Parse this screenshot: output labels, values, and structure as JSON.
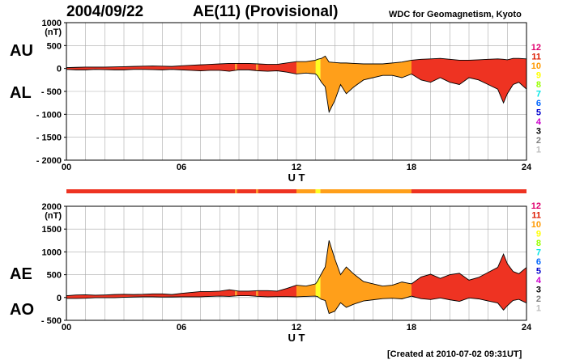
{
  "header": {
    "date": "2004/09/22",
    "title": "AE(11) (Provisional)",
    "source": "WDC for Geomagnetism, Kyoto"
  },
  "footer": {
    "created": "[Created at 2010-07-02 09:31UT]"
  },
  "colors": {
    "legend": [
      "#e0006f",
      "#dd1a00",
      "#ff9900",
      "#ffff00",
      "#99ff00",
      "#00e5e5",
      "#0066ff",
      "#0000cc",
      "#cc00cc",
      "#000000",
      "#808080",
      "#bbbbbb"
    ],
    "fill_levels": {
      "12": "#ee3322",
      "11": "#ee3322",
      "10": "#ff9f1a",
      "9": "#ffff22"
    }
  },
  "chart_data": [
    {
      "type": "area",
      "name": "AU/AL",
      "labels": {
        "top": "AU",
        "bottom": "AL"
      },
      "y_unit": "(nT)",
      "ylim": [
        -2000,
        1000
      ],
      "y_ticks": [
        "1000",
        "500",
        "0",
        "- 500",
        "- 1000",
        "- 1500",
        "- 2000"
      ],
      "y_tick_values": [
        1000,
        500,
        0,
        -500,
        -1000,
        -1500,
        -2000
      ],
      "xlabel": "U T",
      "xlim": [
        0,
        24
      ],
      "x_ticks": [
        "00",
        "06",
        "12",
        "18",
        "24"
      ],
      "x_tick_values": [
        0,
        6,
        12,
        18,
        24
      ],
      "grid": true,
      "legend": [
        "12",
        "11",
        "10",
        "9",
        "8",
        "7",
        "6",
        "5",
        "4",
        "3",
        "2",
        "1"
      ],
      "x": [
        0,
        0.5,
        1,
        1.5,
        2,
        2.5,
        3,
        3.5,
        4,
        4.5,
        5,
        5.5,
        6,
        6.5,
        7,
        7.5,
        8,
        8.5,
        9,
        9.5,
        10,
        10.5,
        11,
        11.5,
        12,
        12.5,
        13,
        13.1,
        13.3,
        13.5,
        13.7,
        14,
        14.3,
        14.6,
        15,
        15.5,
        16,
        16.5,
        17,
        17.5,
        18,
        18.5,
        19,
        19.5,
        20,
        20.5,
        21,
        21.5,
        22,
        22.5,
        22.8,
        23,
        23.3,
        23.6,
        24
      ],
      "upper": [
        20,
        25,
        30,
        30,
        30,
        35,
        40,
        45,
        50,
        55,
        50,
        45,
        60,
        70,
        80,
        90,
        100,
        110,
        110,
        110,
        100,
        90,
        90,
        120,
        150,
        150,
        180,
        200,
        220,
        270,
        140,
        130,
        120,
        120,
        110,
        100,
        100,
        100,
        120,
        140,
        180,
        200,
        210,
        220,
        200,
        180,
        180,
        190,
        200,
        210,
        200,
        190,
        220,
        220,
        210
      ],
      "lower": [
        -20,
        -30,
        -30,
        -20,
        -25,
        -30,
        -30,
        -20,
        -20,
        -25,
        -30,
        -20,
        -30,
        -40,
        -50,
        -40,
        -40,
        -60,
        -30,
        -30,
        -50,
        -60,
        -50,
        -80,
        -120,
        -100,
        -120,
        -160,
        -300,
        -400,
        -950,
        -700,
        -350,
        -550,
        -400,
        -250,
        -200,
        -150,
        -150,
        -200,
        -120,
        -250,
        -300,
        -200,
        -300,
        -350,
        -200,
        -250,
        -350,
        -450,
        -750,
        -550,
        -350,
        -300,
        -450
      ],
      "activity_bands": [
        {
          "from": 0,
          "to": 8.8,
          "level": 11
        },
        {
          "from": 8.8,
          "to": 8.9,
          "level": 10
        },
        {
          "from": 8.9,
          "to": 9.9,
          "level": 11
        },
        {
          "from": 9.9,
          "to": 10.0,
          "level": 10
        },
        {
          "from": 10.0,
          "to": 12.0,
          "level": 11
        },
        {
          "from": 12.0,
          "to": 13.0,
          "level": 10
        },
        {
          "from": 13.0,
          "to": 13.25,
          "level": 9
        },
        {
          "from": 13.25,
          "to": 18.0,
          "level": 10
        },
        {
          "from": 18.0,
          "to": 24,
          "level": 11
        }
      ]
    },
    {
      "type": "area",
      "name": "AE/AO",
      "labels": {
        "top": "AE",
        "bottom": "AO"
      },
      "y_unit": "(nT)",
      "ylim": [
        -500,
        2000
      ],
      "y_ticks": [
        "2000",
        "1500",
        "1000",
        "500",
        "0",
        "- 500"
      ],
      "y_tick_values": [
        2000,
        1500,
        1000,
        500,
        0,
        -500
      ],
      "xlabel": "U T",
      "xlim": [
        0,
        24
      ],
      "x_ticks": [
        "00",
        "06",
        "12",
        "18",
        "24"
      ],
      "x_tick_values": [
        0,
        6,
        12,
        18,
        24
      ],
      "grid": true,
      "legend": [
        "12",
        "11",
        "10",
        "9",
        "8",
        "7",
        "6",
        "5",
        "4",
        "3",
        "2",
        "1"
      ],
      "x": [
        0,
        0.5,
        1,
        1.5,
        2,
        2.5,
        3,
        3.5,
        4,
        4.5,
        5,
        5.5,
        6,
        6.5,
        7,
        7.5,
        8,
        8.5,
        9,
        9.5,
        10,
        10.5,
        11,
        11.5,
        12,
        12.5,
        13,
        13.1,
        13.3,
        13.5,
        13.7,
        14,
        14.3,
        14.6,
        15,
        15.5,
        16,
        16.5,
        17,
        17.5,
        18,
        18.5,
        19,
        19.5,
        20,
        20.5,
        21,
        21.5,
        22,
        22.5,
        22.8,
        23,
        23.3,
        23.6,
        24
      ],
      "upper": [
        40,
        55,
        60,
        50,
        55,
        65,
        70,
        65,
        70,
        80,
        80,
        65,
        90,
        110,
        130,
        130,
        140,
        170,
        140,
        140,
        150,
        150,
        140,
        200,
        270,
        250,
        300,
        360,
        520,
        670,
        1250,
        850,
        500,
        670,
        510,
        350,
        300,
        250,
        270,
        340,
        300,
        450,
        510,
        420,
        500,
        530,
        380,
        440,
        550,
        660,
        950,
        740,
        570,
        520,
        660
      ],
      "lower": [
        -20,
        -20,
        -15,
        -5,
        -5,
        -5,
        5,
        10,
        15,
        15,
        10,
        12,
        15,
        15,
        15,
        25,
        30,
        25,
        40,
        40,
        25,
        15,
        20,
        20,
        15,
        25,
        30,
        20,
        -40,
        -65,
        -350,
        -300,
        -115,
        -215,
        -145,
        -75,
        -50,
        -25,
        -15,
        -30,
        30,
        -25,
        -45,
        -10,
        -50,
        -85,
        -10,
        -30,
        -75,
        -120,
        -275,
        -180,
        -65,
        -40,
        -120
      ],
      "activity_bands": [
        {
          "from": 0,
          "to": 8.8,
          "level": 11
        },
        {
          "from": 8.8,
          "to": 8.9,
          "level": 10
        },
        {
          "from": 8.9,
          "to": 9.9,
          "level": 11
        },
        {
          "from": 9.9,
          "to": 10.0,
          "level": 10
        },
        {
          "from": 10.0,
          "to": 12.0,
          "level": 11
        },
        {
          "from": 12.0,
          "to": 13.0,
          "level": 10
        },
        {
          "from": 13.0,
          "to": 13.25,
          "level": 9
        },
        {
          "from": 13.25,
          "to": 18.0,
          "level": 10
        },
        {
          "from": 18.0,
          "to": 24,
          "level": 11
        }
      ]
    }
  ]
}
